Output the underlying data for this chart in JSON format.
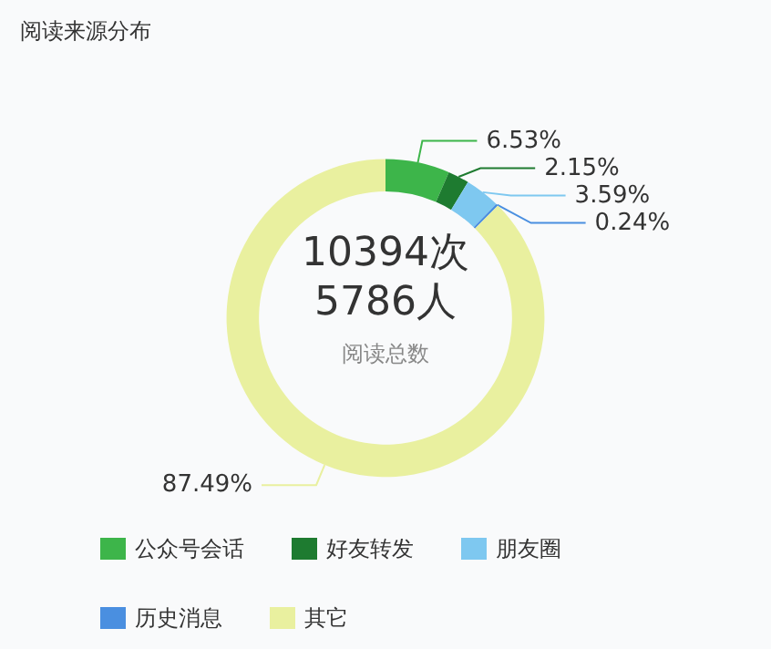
{
  "chart_data": {
    "type": "donut",
    "title": "阅读来源分布",
    "categories": [
      "公众号会话",
      "好友转发",
      "朋友圈",
      "历史消息",
      "其它"
    ],
    "values": [
      6.53,
      2.15,
      3.59,
      0.24,
      87.49
    ],
    "value_labels": [
      "6.53%",
      "2.15%",
      "3.59%",
      "0.24%",
      "87.49%"
    ],
    "colors": [
      "#3db54a",
      "#1e7b30",
      "#7ec8f0",
      "#4a8fe0",
      "#e9f09f"
    ],
    "annotations": [
      "10394次",
      "5786人",
      "阅读总数"
    ],
    "legend": "bottom left"
  }
}
